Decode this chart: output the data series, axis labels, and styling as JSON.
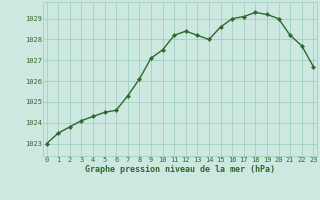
{
  "x": [
    0,
    1,
    2,
    3,
    4,
    5,
    6,
    7,
    8,
    9,
    10,
    11,
    12,
    13,
    14,
    15,
    16,
    17,
    18,
    19,
    20,
    21,
    22,
    23
  ],
  "y": [
    1023.0,
    1023.5,
    1023.8,
    1024.1,
    1024.3,
    1024.5,
    1024.6,
    1025.3,
    1026.1,
    1027.1,
    1027.5,
    1028.2,
    1028.4,
    1028.2,
    1028.0,
    1028.6,
    1029.0,
    1029.1,
    1029.3,
    1029.2,
    1029.0,
    1028.2,
    1027.7,
    1026.7
  ],
  "line_color": "#2d6a2d",
  "marker_color": "#2d6a2d",
  "bg_color": "#cce8e0",
  "grid_color": "#99ccbb",
  "xlabel": "Graphe pression niveau de la mer (hPa)",
  "xlabel_color": "#2d6a2d",
  "ylabel_ticks": [
    1023,
    1024,
    1025,
    1026,
    1027,
    1028,
    1029
  ],
  "xtick_labels": [
    "0",
    "1",
    "2",
    "3",
    "4",
    "5",
    "6",
    "7",
    "8",
    "9",
    "10",
    "11",
    "12",
    "13",
    "14",
    "15",
    "16",
    "17",
    "18",
    "19",
    "20",
    "21",
    "22",
    "23"
  ],
  "ylim": [
    1022.4,
    1029.8
  ],
  "xlim": [
    -0.3,
    23.3
  ]
}
